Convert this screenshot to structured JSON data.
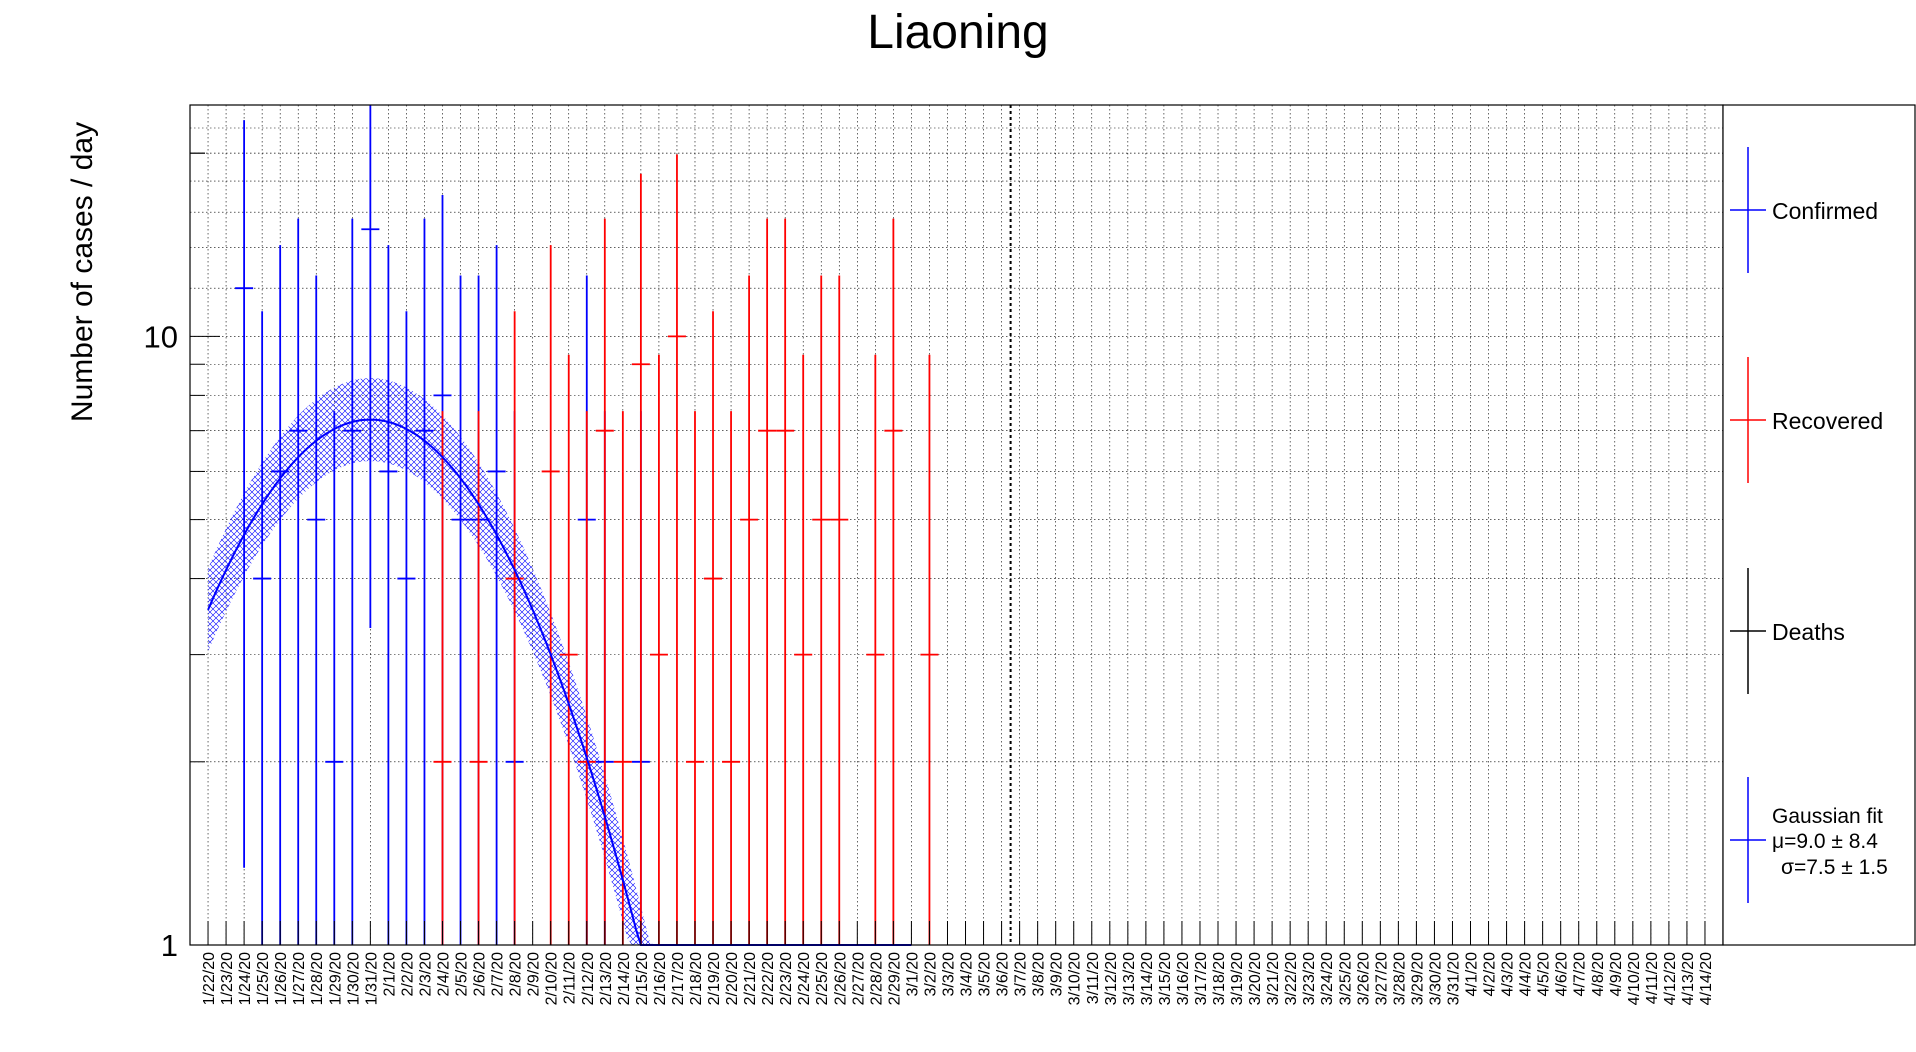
{
  "chart_data": {
    "type": "scatter",
    "title": "Liaoning",
    "ylabel": "Number of cases / day",
    "xlabel": "",
    "yscale": "log",
    "ylim": [
      1,
      24
    ],
    "grid": true,
    "legend_position": "right",
    "y_tick_labels": [
      "1",
      "10"
    ],
    "categories": [
      "1/22/20",
      "1/23/20",
      "1/24/20",
      "1/25/20",
      "1/26/20",
      "1/27/20",
      "1/28/20",
      "1/29/20",
      "1/30/20",
      "1/31/20",
      "2/1/20",
      "2/2/20",
      "2/3/20",
      "2/4/20",
      "2/5/20",
      "2/6/20",
      "2/7/20",
      "2/8/20",
      "2/9/20",
      "2/10/20",
      "2/11/20",
      "2/12/20",
      "2/13/20",
      "2/14/20",
      "2/15/20",
      "2/16/20",
      "2/17/20",
      "2/18/20",
      "2/19/20",
      "2/20/20",
      "2/21/20",
      "2/22/20",
      "2/23/20",
      "2/24/20",
      "2/25/20",
      "2/26/20",
      "2/27/20",
      "2/28/20",
      "2/29/20",
      "3/1/20",
      "3/2/20",
      "3/3/20",
      "3/4/20",
      "3/5/20",
      "3/6/20",
      "3/7/20",
      "3/8/20",
      "3/9/20",
      "3/10/20",
      "3/11/20",
      "3/12/20",
      "3/13/20",
      "3/14/20",
      "3/15/20",
      "3/16/20",
      "3/17/20",
      "3/18/20",
      "3/19/20",
      "3/20/20",
      "3/21/20",
      "3/22/20",
      "3/23/20",
      "3/24/20",
      "3/25/20",
      "3/26/20",
      "3/27/20",
      "3/28/20",
      "3/29/20",
      "3/30/20",
      "3/31/20",
      "4/1/20",
      "4/2/20",
      "4/3/20",
      "4/4/20",
      "4/5/20",
      "4/6/20",
      "4/7/20",
      "4/8/20",
      "4/9/20",
      "4/10/20",
      "4/11/20",
      "4/12/20",
      "4/13/20",
      "4/14/20"
    ],
    "series": [
      {
        "name": "Confirmed",
        "color": "#0000ff",
        "points": [
          {
            "x": "1/24/20",
            "y": 12
          },
          {
            "x": "1/25/20",
            "y": 4
          },
          {
            "x": "1/26/20",
            "y": 6
          },
          {
            "x": "1/27/20",
            "y": 7
          },
          {
            "x": "1/28/20",
            "y": 5
          },
          {
            "x": "1/29/20",
            "y": 2
          },
          {
            "x": "1/30/20",
            "y": 7
          },
          {
            "x": "1/31/20",
            "y": 15
          },
          {
            "x": "2/1/20",
            "y": 6
          },
          {
            "x": "2/2/20",
            "y": 4
          },
          {
            "x": "2/3/20",
            "y": 7
          },
          {
            "x": "2/4/20",
            "y": 8
          },
          {
            "x": "2/5/20",
            "y": 5
          },
          {
            "x": "2/6/20",
            "y": 5
          },
          {
            "x": "2/7/20",
            "y": 6
          },
          {
            "x": "2/8/20",
            "y": 2
          },
          {
            "x": "2/12/20",
            "y": 5
          },
          {
            "x": "2/13/20",
            "y": 2
          },
          {
            "x": "2/15/20",
            "y": 2
          }
        ]
      },
      {
        "name": "Recovered",
        "color": "#ff0000",
        "points": [
          {
            "x": "2/4/20",
            "y": 2
          },
          {
            "x": "2/6/20",
            "y": 2
          },
          {
            "x": "2/8/20",
            "y": 4
          },
          {
            "x": "2/10/20",
            "y": 6
          },
          {
            "x": "2/11/20",
            "y": 3
          },
          {
            "x": "2/12/20",
            "y": 2
          },
          {
            "x": "2/13/20",
            "y": 7
          },
          {
            "x": "2/14/20",
            "y": 2
          },
          {
            "x": "2/15/20",
            "y": 9
          },
          {
            "x": "2/16/20",
            "y": 3
          },
          {
            "x": "2/17/20",
            "y": 10
          },
          {
            "x": "2/18/20",
            "y": 2
          },
          {
            "x": "2/19/20",
            "y": 4
          },
          {
            "x": "2/20/20",
            "y": 2
          },
          {
            "x": "2/21/20",
            "y": 5
          },
          {
            "x": "2/22/20",
            "y": 7
          },
          {
            "x": "2/23/20",
            "y": 7
          },
          {
            "x": "2/24/20",
            "y": 3
          },
          {
            "x": "2/25/20",
            "y": 5
          },
          {
            "x": "2/26/20",
            "y": 5
          },
          {
            "x": "2/28/20",
            "y": 3
          },
          {
            "x": "2/29/20",
            "y": 7
          },
          {
            "x": "3/2/20",
            "y": 3
          }
        ]
      },
      {
        "name": "Deaths",
        "color": "#000000",
        "points": []
      }
    ],
    "fit": {
      "name": "Gaussian fit",
      "color": "#0000ff",
      "mu_label": "μ=9.0 ± 8.4",
      "sigma_label": "σ=7.5 ± 1.5",
      "amplitude": 7.3,
      "mu": 9.0,
      "sigma": 7.5,
      "band_factor": 1.17,
      "x_start": 0,
      "x_end": 39
    },
    "vertical_marker": "3/6/20"
  }
}
